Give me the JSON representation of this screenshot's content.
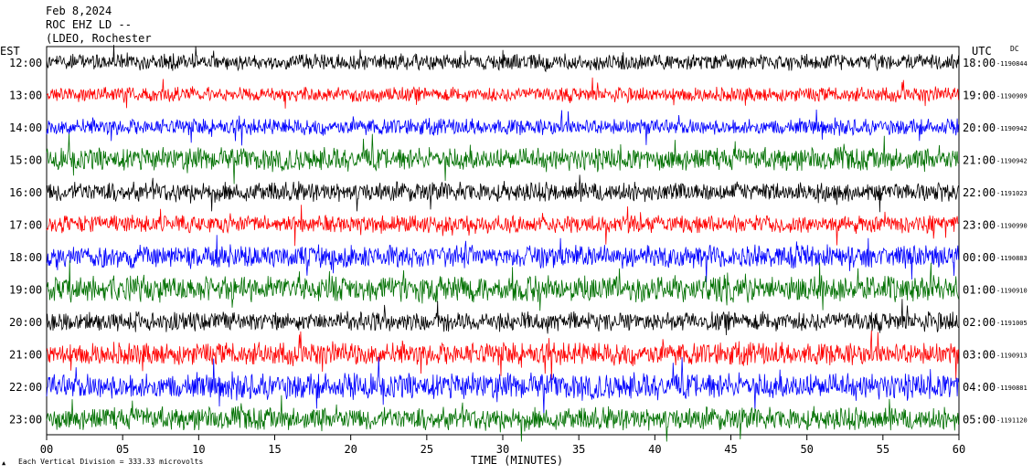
{
  "header": {
    "date": "Feb 8,2024",
    "station": "ROC EHZ LD --",
    "network": "(LDEO, Rochester"
  },
  "axes": {
    "left_tz": "EST",
    "right_tz": "UTC",
    "dc_label": "DC",
    "xlabel": "TIME (MINUTES)",
    "scale_note": "Each Vertical Division = 333.33 microvolts"
  },
  "chart_data": {
    "type": "line",
    "title": "",
    "xlabel": "TIME (MINUTES)",
    "xlim": [
      0,
      60
    ],
    "x_ticks": [
      "00",
      "05",
      "10",
      "15",
      "20",
      "25",
      "30",
      "35",
      "40",
      "45",
      "50",
      "55",
      "60"
    ],
    "series_colors": [
      "#000000",
      "#ff0000",
      "#0000ff",
      "#007000"
    ],
    "rows": [
      {
        "left": "12:00",
        "right": "18:00",
        "dc": "-1190844",
        "color": "#000000",
        "amp": 10
      },
      {
        "left": "13:00",
        "right": "19:00",
        "dc": "-1190909",
        "color": "#ff0000",
        "amp": 9
      },
      {
        "left": "14:00",
        "right": "20:00",
        "dc": "-1190942",
        "color": "#0000ff",
        "amp": 10
      },
      {
        "left": "15:00",
        "right": "21:00",
        "dc": "-1190942",
        "color": "#007000",
        "amp": 14
      },
      {
        "left": "16:00",
        "right": "22:00",
        "dc": "-1191023",
        "color": "#000000",
        "amp": 12
      },
      {
        "left": "17:00",
        "right": "23:00",
        "dc": "-1190990",
        "color": "#ff0000",
        "amp": 11
      },
      {
        "left": "18:00",
        "right": "00:00",
        "dc": "-1190883",
        "color": "#0000ff",
        "amp": 14
      },
      {
        "left": "19:00",
        "right": "01:00",
        "dc": "-1190910",
        "color": "#007000",
        "amp": 16
      },
      {
        "left": "20:00",
        "right": "02:00",
        "dc": "-1191005",
        "color": "#000000",
        "amp": 12
      },
      {
        "left": "21:00",
        "right": "03:00",
        "dc": "-1190913",
        "color": "#ff0000",
        "amp": 14
      },
      {
        "left": "22:00",
        "right": "04:00",
        "dc": "-1190881",
        "color": "#0000ff",
        "amp": 16
      },
      {
        "left": "23:00",
        "right": "05:00",
        "dc": "-1191120",
        "color": "#007000",
        "amp": 14
      }
    ]
  }
}
